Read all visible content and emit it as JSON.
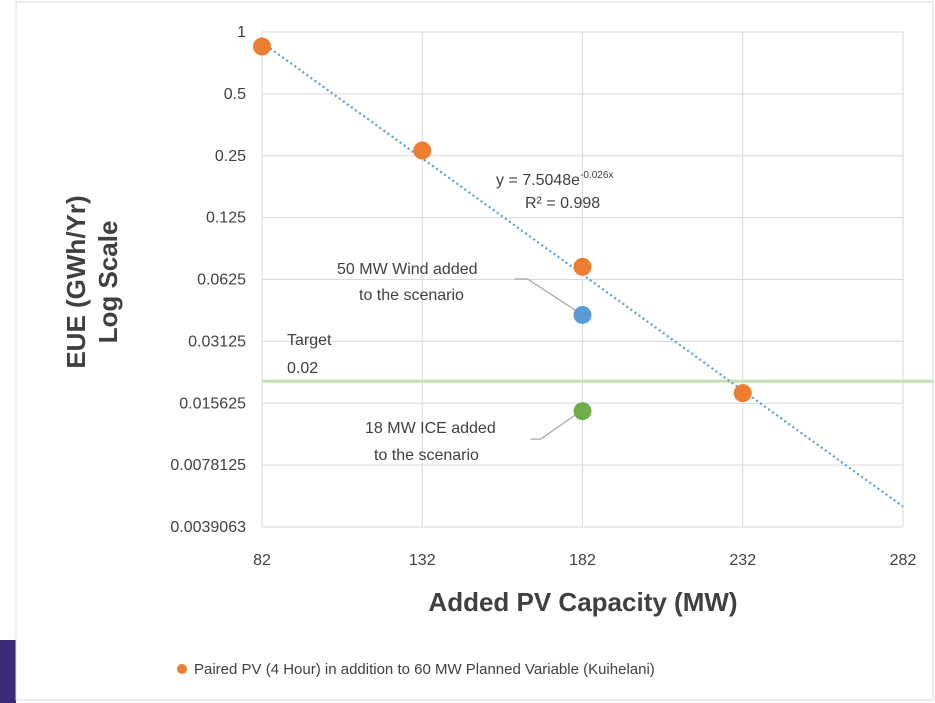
{
  "colors": {
    "series": "#ED7D31",
    "wind": "#5B9BD5",
    "ice": "#70AD47",
    "target_line": "#C5E0B4",
    "trendline": "#5B9BD5",
    "gridline": "#D9D9D9",
    "text": "#404040",
    "corner_accent": "#3C2A78"
  },
  "chart_data": {
    "type": "scatter",
    "title": "",
    "xlabel": "Added PV Capacity (MW)",
    "ylabel_line1": "EUE (GWh/Yr)",
    "ylabel_line2": "Log Scale",
    "y_scale": "log2",
    "xlim": [
      82,
      282
    ],
    "ylim": [
      0.0039063,
      1
    ],
    "grid": true,
    "x_ticks": [
      "82",
      "132",
      "182",
      "232",
      "282"
    ],
    "x_tick_values": [
      82,
      132,
      182,
      232,
      282
    ],
    "y_ticks": [
      "1",
      "0.5",
      "0.25",
      "0.125",
      "0.0625",
      "0.03125",
      "0.015625",
      "0.0078125",
      "0.0039063"
    ],
    "y_tick_values": [
      1,
      0.5,
      0.25,
      0.125,
      0.0625,
      0.03125,
      0.015625,
      0.0078125,
      0.0039063
    ],
    "series": [
      {
        "name": "Paired PV (4 Hour) in addition to 60 MW Planned Variable (Kuihelani)",
        "points": [
          {
            "x": 82,
            "y": 0.85
          },
          {
            "x": 132,
            "y": 0.265
          },
          {
            "x": 182,
            "y": 0.072
          },
          {
            "x": 232,
            "y": 0.0175
          }
        ]
      }
    ],
    "extra_points": [
      {
        "key": "wind",
        "x": 182,
        "y": 0.042
      },
      {
        "key": "ice",
        "x": 182,
        "y": 0.0143
      }
    ],
    "trendline": {
      "a": 7.5048,
      "b": -0.026,
      "x_range": [
        82,
        282
      ],
      "equation_prefix": "y = 7.5048e",
      "equation_exp": "-0.026x",
      "r2": "R² = 0.998"
    },
    "target": {
      "value": 0.02,
      "label": "Target",
      "value_label": "0.02"
    },
    "annotations": [
      {
        "key": "wind",
        "lines": [
          "50 MW Wind added",
          "to the scenario"
        ]
      },
      {
        "key": "ice",
        "lines": [
          "18 MW ICE added",
          "to the scenario"
        ]
      }
    ],
    "legend_position": "bottom"
  }
}
